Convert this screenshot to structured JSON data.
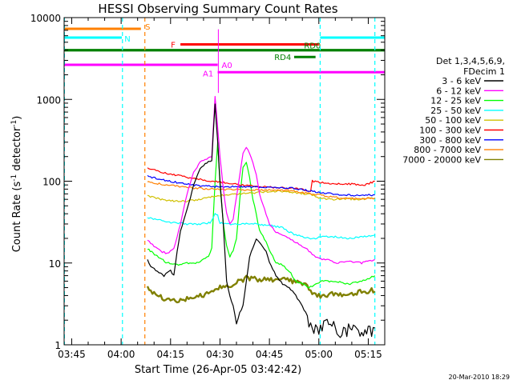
{
  "chart_data": {
    "type": "line",
    "title": "HESSI Observing Summary Count Rates",
    "xlabel": "Start Time (26-Apr-05 03:42:42)",
    "ylabel": "Count Rate (s",
    "ylabel_sup1": "-1",
    "ylabel_mid": " detector",
    "ylabel_sup2": "-1",
    "ylabel_end": ")",
    "yscale": "log",
    "xlim_minutes": [
      222.7,
      320.0
    ],
    "ylim": [
      1,
      10000
    ],
    "x_ticks": [
      {
        "t": 225,
        "label": "03:45"
      },
      {
        "t": 240,
        "label": "04:00"
      },
      {
        "t": 255,
        "label": "04:15"
      },
      {
        "t": 270,
        "label": "04:30"
      },
      {
        "t": 285,
        "label": "04:45"
      },
      {
        "t": 300,
        "label": "05:00"
      },
      {
        "t": 315,
        "label": "05:15"
      }
    ],
    "y_ticks": [
      {
        "v": 1,
        "label": "1"
      },
      {
        "v": 10,
        "label": "10"
      },
      {
        "v": 100,
        "label": "100"
      },
      {
        "v": 1000,
        "label": "1000"
      },
      {
        "v": 10000,
        "label": "10000"
      }
    ],
    "legend": {
      "title_lines": [
        "Det 1,3,4,5,6,9,",
        "FDecim 1"
      ],
      "position": "right"
    },
    "series": [
      {
        "name": "3 - 6 keV",
        "color": "#000000",
        "t": [
          248,
          249,
          251,
          253,
          255,
          256,
          257,
          258,
          260,
          262,
          264,
          266,
          267.5,
          268.5,
          269.3,
          270,
          271,
          272,
          273,
          274,
          275,
          276,
          277,
          278,
          279,
          281,
          282,
          284,
          285,
          287,
          289,
          291,
          293,
          295,
          297,
          299,
          301,
          303,
          305,
          307,
          309,
          311,
          313,
          315,
          317
        ],
        "v": [
          11,
          9,
          8,
          7,
          8,
          7,
          14,
          25,
          45,
          90,
          140,
          170,
          180,
          900,
          300,
          100,
          30,
          6,
          4,
          3,
          1.8,
          2.5,
          3,
          6,
          12,
          20,
          18,
          14,
          10,
          7,
          5.5,
          5,
          4,
          3,
          2,
          1.5,
          1.6,
          1.8,
          1.5,
          1.4,
          1.5,
          1.6,
          1.5,
          1.4,
          1.6
        ]
      },
      {
        "name": "6 - 12 keV",
        "color": "#ff00ff",
        "t": [
          248,
          250,
          252,
          254,
          256,
          258,
          260,
          262,
          264,
          266,
          267.5,
          268.5,
          269.3,
          270,
          271,
          272,
          273,
          274,
          276,
          277,
          278,
          279,
          280,
          281,
          282,
          284,
          285,
          287,
          289,
          291,
          293,
          295,
          297,
          299,
          301,
          303,
          305,
          309,
          313,
          317
        ],
        "v": [
          19,
          16,
          14,
          13,
          15,
          30,
          70,
          130,
          170,
          190,
          200,
          1100,
          450,
          200,
          80,
          40,
          30,
          35,
          120,
          220,
          260,
          220,
          170,
          120,
          70,
          40,
          30,
          24,
          22,
          20,
          18,
          16,
          14,
          12,
          11,
          11,
          10,
          10.5,
          10,
          11
        ]
      },
      {
        "name": "12 - 25 keV",
        "color": "#00ff00",
        "t": [
          248,
          251,
          254,
          257,
          260,
          263,
          265,
          266.5,
          267.5,
          268.5,
          269.3,
          270,
          271,
          272,
          273,
          274,
          275,
          276,
          277,
          278,
          279,
          280,
          281,
          282,
          284,
          285,
          286,
          287,
          289,
          291,
          293,
          295,
          297,
          299,
          301,
          305,
          309,
          313,
          317
        ],
        "v": [
          15,
          12,
          10,
          9.5,
          10,
          10,
          11,
          12,
          15,
          100,
          300,
          90,
          30,
          16,
          12,
          14,
          20,
          60,
          150,
          170,
          110,
          60,
          40,
          25,
          18,
          14,
          12,
          10,
          9.5,
          8,
          6,
          5.5,
          5,
          5.5,
          6,
          6,
          5.5,
          6,
          7
        ]
      },
      {
        "name": "25 - 50 keV",
        "color": "#00ffff",
        "t": [
          248,
          252,
          256,
          260,
          264,
          267,
          268.5,
          269.3,
          270,
          272,
          275,
          278,
          281,
          284,
          287,
          289,
          291,
          293,
          295,
          297,
          299,
          301,
          305,
          309,
          313,
          317
        ],
        "v": [
          36,
          33,
          31,
          30,
          30,
          31,
          40,
          38,
          31,
          30,
          30,
          30,
          30,
          29,
          28,
          27,
          24,
          22,
          21,
          20,
          20,
          21,
          21,
          20,
          21,
          22
        ]
      },
      {
        "name": "50 - 100 keV",
        "color": "#d0c000",
        "t": [
          248,
          252,
          256,
          260,
          264,
          268,
          272,
          276,
          280,
          284,
          288,
          292,
          296,
          298,
          300,
          304,
          308,
          312,
          317
        ],
        "v": [
          66,
          60,
          57,
          57,
          60,
          65,
          68,
          70,
          72,
          74,
          76,
          73,
          70,
          68,
          62,
          60,
          61,
          60,
          62
        ]
      },
      {
        "name": "100 - 300 keV",
        "color": "#ff0000",
        "t": [
          248,
          252,
          256,
          260,
          264,
          268,
          272,
          276,
          280,
          284,
          288,
          292,
          296,
          297.5,
          298,
          302,
          306,
          310,
          314,
          317
        ],
        "v": [
          145,
          130,
          120,
          112,
          105,
          100,
          95,
          90,
          87,
          85,
          83,
          82,
          78,
          75,
          100,
          95,
          93,
          92,
          90,
          100
        ]
      },
      {
        "name": "300 - 800 keV",
        "color": "#0000ff",
        "t": [
          248,
          252,
          256,
          260,
          264,
          268,
          272,
          276,
          280,
          284,
          288,
          292,
          296,
          300,
          304,
          308,
          312,
          317
        ],
        "v": [
          115,
          105,
          98,
          92,
          88,
          86,
          85,
          86,
          85,
          84,
          83,
          82,
          78,
          73,
          70,
          68,
          67,
          68
        ]
      },
      {
        "name": "800 - 7000 keV",
        "color": "#ff8000",
        "t": [
          248,
          252,
          256,
          260,
          264,
          268,
          272,
          276,
          280,
          284,
          288,
          292,
          296,
          300,
          304,
          308,
          312,
          317
        ],
        "v": [
          100,
          92,
          88,
          84,
          82,
          80,
          79,
          79,
          78,
          78,
          77,
          76,
          72,
          68,
          64,
          62,
          61,
          62
        ]
      },
      {
        "name": "7000 - 20000 keV",
        "color": "#808000",
        "t": [
          248,
          250,
          252,
          254,
          256,
          258,
          260,
          262,
          264,
          266,
          268,
          270,
          272,
          274,
          276,
          278,
          280,
          282,
          284,
          286,
          288,
          290,
          292,
          294,
          296,
          298,
          300,
          302,
          304,
          306,
          308,
          310,
          312,
          314,
          316,
          317
        ],
        "v": [
          5,
          4.2,
          3.8,
          3.5,
          3.4,
          3.6,
          3.6,
          3.8,
          4,
          4.2,
          4.5,
          5,
          5.2,
          5.5,
          6,
          6.5,
          6.4,
          6.2,
          6.6,
          6.3,
          6.4,
          6.2,
          6,
          5.8,
          5.6,
          4.2,
          4,
          4,
          4.2,
          4,
          4.3,
          4.2,
          4.4,
          4.5,
          4.6,
          4.5
        ]
      }
    ],
    "annotations": {
      "dashed_lines": [
        {
          "t": 222.8,
          "color": "#00ffff"
        },
        {
          "t": 240.4,
          "color": "#00ffff"
        },
        {
          "t": 247.2,
          "color": "#ff8000"
        },
        {
          "t": 300.4,
          "color": "#00ffff"
        },
        {
          "t": 317.0,
          "color": "#00ffff"
        }
      ],
      "flag_bars": [
        {
          "label": "S",
          "color": "#ff8000",
          "level": 7300,
          "t1": 222.7,
          "t2": 246.0,
          "label_t": 247.3,
          "label_side": "right"
        },
        {
          "label": "N",
          "color": "#00ffff",
          "level": 5700,
          "t1": 222.7,
          "t2": 240.2,
          "label_t": 241.0,
          "label_side": "right"
        },
        {
          "label": "N",
          "color": "#00ffff",
          "level": 5700,
          "t1": 300.4,
          "t2": 320.0,
          "label_t": null,
          "label_side": "none"
        },
        {
          "label": "F",
          "color": "#ff0000",
          "level": 4700,
          "t1": 258.0,
          "t2": 300.0,
          "label_t": 256.5,
          "label_side": "left"
        },
        {
          "label": "",
          "color": "#008000",
          "level": 4000,
          "t1": 222.7,
          "t2": 320.0,
          "label_t": null,
          "label_side": "none"
        },
        {
          "label": "RD0",
          "color": "#008000",
          "level": 4000,
          "t1": 222.7,
          "t2": 320.0,
          "label_t": 295.5,
          "label_side": "above"
        },
        {
          "label": "RD4",
          "color": "#008000",
          "level": 3300,
          "t1": 292.5,
          "t2": 299.0,
          "label_t": 291.6,
          "label_side": "left"
        },
        {
          "label": "A0",
          "color": "#ff00ff",
          "level": 2650,
          "t1": 222.7,
          "t2": 269.3,
          "label_t": 270.5,
          "label_side": "right"
        },
        {
          "label": "A1",
          "color": "#ff00ff",
          "level": 2150,
          "t1": 269.3,
          "t2": 320.0,
          "label_t": 268.0,
          "label_side": "left"
        }
      ],
      "spike_t": 269.5
    },
    "footer_timestamp": "20-Mar-2010 18:29"
  }
}
